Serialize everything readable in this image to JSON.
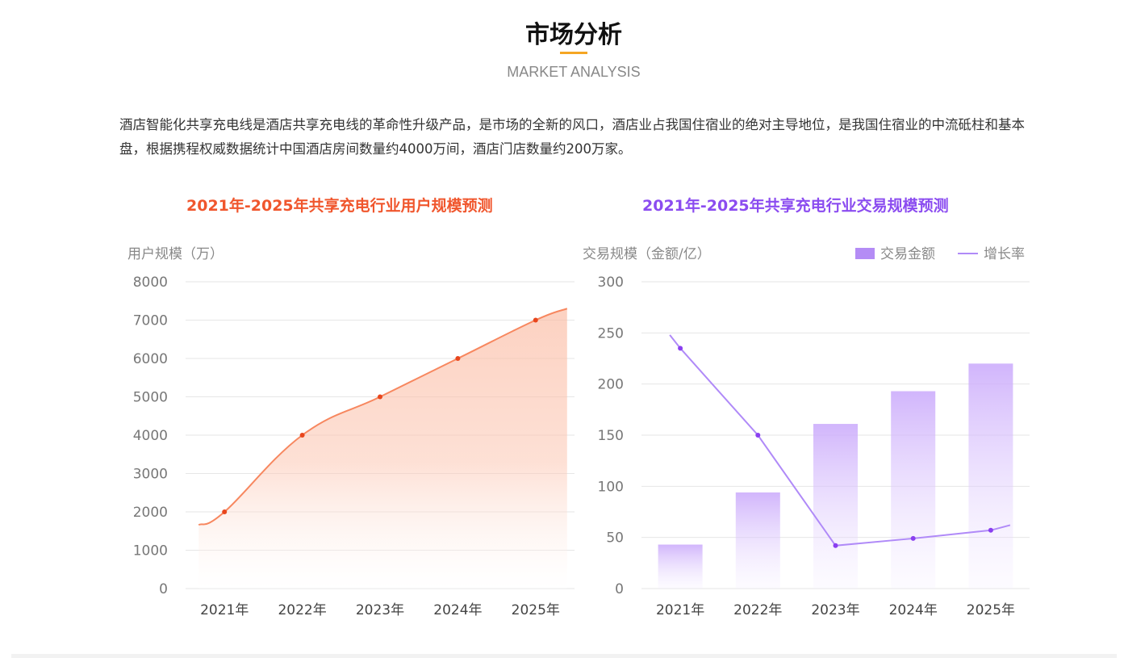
{
  "header": {
    "title": "市场分析",
    "subtitle": "MARKET ANALYSIS",
    "accent": "#f5a623"
  },
  "intro": "酒店智能化共享充电线是酒店共享充电线的革命性升级产品，是市场的全新的风口，酒店业占我国住宿业的绝对主导地位，是我国住宿业的中流砥柱和基本盘，根据携程权威数据统计中国酒店房间数量约4000万间，酒店门店数量约200万家。",
  "chart_data": [
    {
      "type": "area",
      "title": "2021年-2025年共享充电行业用户规模预测",
      "ylabel": "用户规模（万）",
      "categories": [
        "2021年",
        "2022年",
        "2023年",
        "2024年",
        "2025年"
      ],
      "values": [
        2000,
        4000,
        5000,
        6000,
        7000
      ],
      "ylim": [
        0,
        8000
      ],
      "yticks": [
        0,
        1000,
        2000,
        3000,
        4000,
        5000,
        6000,
        7000,
        8000
      ],
      "grid": true,
      "color": "#f26b3a",
      "title_color": "#f0562d"
    },
    {
      "type": "bar+line",
      "title": "2021年-2025年共享充电行业交易规模预测",
      "ylabel": "交易规模（金额/亿）",
      "categories": [
        "2021年",
        "2022年",
        "2023年",
        "2024年",
        "2025年"
      ],
      "series": [
        {
          "name": "交易金额",
          "type": "bar",
          "values": [
            43,
            94,
            161,
            193,
            220
          ]
        },
        {
          "name": "增长率",
          "type": "line",
          "values": [
            235,
            150,
            42,
            49,
            57
          ]
        }
      ],
      "ylim": [
        0,
        300
      ],
      "yticks": [
        0,
        50,
        100,
        150,
        200,
        250,
        300
      ],
      "grid": true,
      "legend": "top-right",
      "color": "#b48cf5",
      "line_color": "#a77cf7",
      "title_color": "#8b4cf0"
    }
  ]
}
